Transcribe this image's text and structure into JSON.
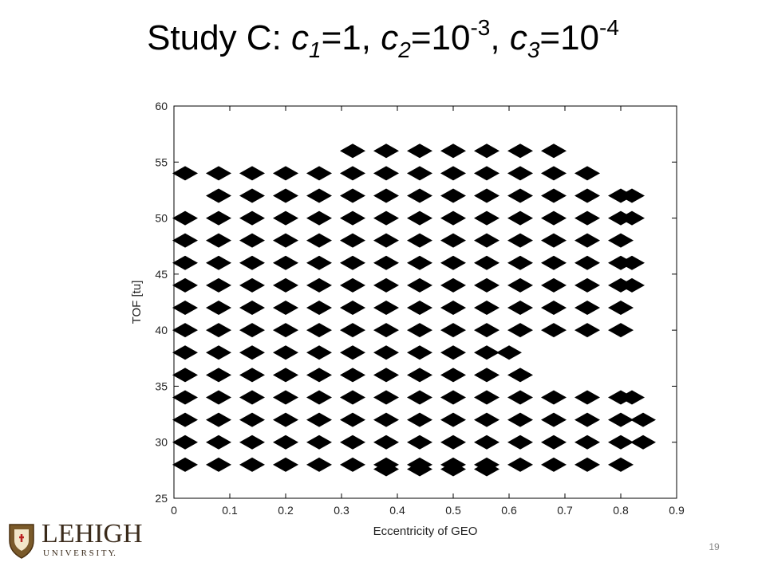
{
  "title_parts": [
    "Study C: ",
    "c",
    "1",
    "=1, ",
    "c",
    "2",
    "=10",
    "-3",
    ", ",
    "c",
    "3",
    "=10",
    "-4"
  ],
  "footer": {
    "logo_name": "LEHIGH",
    "logo_sub": "U N I V E R S I T Y.",
    "page_number": "19"
  },
  "chart_data": {
    "type": "scatter",
    "color": "#000000",
    "xlabel": "Eccentricity of GEO",
    "ylabel": "TOF [tu]",
    "xlim": [
      0,
      0.9
    ],
    "ylim": [
      25,
      60
    ],
    "xticks": [
      0,
      0.1,
      0.2,
      0.3,
      0.4,
      0.5,
      0.6,
      0.7,
      0.8,
      0.9
    ],
    "yticks": [
      25,
      30,
      35,
      40,
      45,
      50,
      55,
      60
    ],
    "x": [
      0.02,
      0.08,
      0.14,
      0.2,
      0.26,
      0.32,
      0.38,
      0.44,
      0.5,
      0.56,
      0.62,
      0.68,
      0.74,
      0.8,
      0.02,
      0.08,
      0.14,
      0.2,
      0.26,
      0.32,
      0.38,
      0.44,
      0.5,
      0.56,
      0.62,
      0.68,
      0.74,
      0.8,
      0.84,
      0.02,
      0.08,
      0.14,
      0.2,
      0.26,
      0.32,
      0.38,
      0.44,
      0.5,
      0.56,
      0.62,
      0.68,
      0.74,
      0.8,
      0.84,
      0.02,
      0.08,
      0.14,
      0.2,
      0.26,
      0.32,
      0.38,
      0.44,
      0.5,
      0.56,
      0.62,
      0.68,
      0.74,
      0.8,
      0.82,
      0.02,
      0.08,
      0.14,
      0.2,
      0.26,
      0.32,
      0.38,
      0.44,
      0.5,
      0.56,
      0.62,
      0.02,
      0.08,
      0.14,
      0.2,
      0.26,
      0.32,
      0.38,
      0.44,
      0.5,
      0.56,
      0.6,
      0.02,
      0.08,
      0.14,
      0.2,
      0.26,
      0.32,
      0.38,
      0.44,
      0.5,
      0.56,
      0.62,
      0.68,
      0.74,
      0.8,
      0.02,
      0.08,
      0.14,
      0.2,
      0.26,
      0.32,
      0.38,
      0.44,
      0.5,
      0.56,
      0.62,
      0.68,
      0.74,
      0.8,
      0.02,
      0.08,
      0.14,
      0.2,
      0.26,
      0.32,
      0.38,
      0.44,
      0.5,
      0.56,
      0.62,
      0.68,
      0.74,
      0.8,
      0.82,
      0.02,
      0.08,
      0.14,
      0.2,
      0.26,
      0.32,
      0.38,
      0.44,
      0.5,
      0.56,
      0.62,
      0.68,
      0.74,
      0.8,
      0.82,
      0.02,
      0.08,
      0.14,
      0.2,
      0.26,
      0.32,
      0.38,
      0.44,
      0.5,
      0.56,
      0.62,
      0.68,
      0.74,
      0.8,
      0.02,
      0.08,
      0.14,
      0.2,
      0.26,
      0.32,
      0.38,
      0.44,
      0.5,
      0.56,
      0.62,
      0.68,
      0.74,
      0.8,
      0.82,
      0.08,
      0.14,
      0.2,
      0.26,
      0.32,
      0.38,
      0.44,
      0.5,
      0.56,
      0.62,
      0.68,
      0.74,
      0.8,
      0.82,
      0.02,
      0.08,
      0.14,
      0.2,
      0.26,
      0.32,
      0.38,
      0.44,
      0.5,
      0.56,
      0.62,
      0.68,
      0.74,
      0.32,
      0.38,
      0.44,
      0.5,
      0.56,
      0.62,
      0.68,
      0.38,
      0.44,
      0.5,
      0.56
    ],
    "y": [
      28,
      28,
      28,
      28,
      28,
      28,
      28,
      28,
      28,
      28,
      28,
      28,
      28,
      28,
      30,
      30,
      30,
      30,
      30,
      30,
      30,
      30,
      30,
      30,
      30,
      30,
      30,
      30,
      30,
      32,
      32,
      32,
      32,
      32,
      32,
      32,
      32,
      32,
      32,
      32,
      32,
      32,
      32,
      32,
      34,
      34,
      34,
      34,
      34,
      34,
      34,
      34,
      34,
      34,
      34,
      34,
      34,
      34,
      34,
      36,
      36,
      36,
      36,
      36,
      36,
      36,
      36,
      36,
      36,
      36,
      38,
      38,
      38,
      38,
      38,
      38,
      38,
      38,
      38,
      38,
      38,
      40,
      40,
      40,
      40,
      40,
      40,
      40,
      40,
      40,
      40,
      40,
      40,
      40,
      40,
      42,
      42,
      42,
      42,
      42,
      42,
      42,
      42,
      42,
      42,
      42,
      42,
      42,
      42,
      44,
      44,
      44,
      44,
      44,
      44,
      44,
      44,
      44,
      44,
      44,
      44,
      44,
      44,
      44,
      46,
      46,
      46,
      46,
      46,
      46,
      46,
      46,
      46,
      46,
      46,
      46,
      46,
      46,
      46,
      48,
      48,
      48,
      48,
      48,
      48,
      48,
      48,
      48,
      48,
      48,
      48,
      48,
      48,
      50,
      50,
      50,
      50,
      50,
      50,
      50,
      50,
      50,
      50,
      50,
      50,
      50,
      50,
      50,
      52,
      52,
      52,
      52,
      52,
      52,
      52,
      52,
      52,
      52,
      52,
      52,
      52,
      52,
      54,
      54,
      54,
      54,
      54,
      54,
      54,
      54,
      54,
      54,
      54,
      54,
      54,
      56,
      56,
      56,
      56,
      56,
      56,
      56,
      27.6,
      27.6,
      27.6,
      27.6
    ]
  }
}
